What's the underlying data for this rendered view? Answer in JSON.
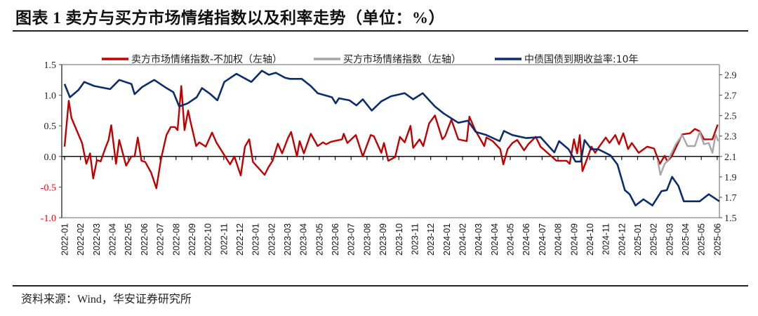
{
  "title": "图表 1 卖方与买方市场情绪指数以及利率走势（单位：%）",
  "source": "资料来源：Wind，华安证券研究所",
  "chart_data": {
    "type": "line",
    "title": "",
    "legend_position": "top",
    "grid": false,
    "left_axis": {
      "range": [
        -1.0,
        1.5
      ],
      "ticks": [
        "1.5",
        "1.0",
        "0.5",
        "0.0",
        "-0.5",
        "-1.0"
      ],
      "negative_label_color": "#ff0000"
    },
    "right_axis": {
      "range": [
        1.5,
        3.0
      ],
      "ticks": [
        "2.9",
        "2.7",
        "2.5",
        "2.3",
        "2.1",
        "1.9",
        "1.7",
        "1.5"
      ]
    },
    "x_ticks": [
      "2022-01",
      "2022-02",
      "2022-03",
      "2022-04",
      "2022-05",
      "2022-06",
      "2022-07",
      "2022-08",
      "2022-09",
      "2022-10",
      "2022-11",
      "2022-12",
      "2023-01",
      "2023-02",
      "2023-03",
      "2023-04",
      "2023-05",
      "2023-06",
      "2023-07",
      "2023-08",
      "2023-09",
      "2023-10",
      "2023-11",
      "2023-12",
      "2024-01",
      "2024-02",
      "2024-03",
      "2024-04",
      "2024-05",
      "2024-06",
      "2024-07",
      "2024-08",
      "2024-09",
      "2024-10",
      "2024-11",
      "2024-12",
      "2025-01",
      "2025-02",
      "2025-03",
      "2025-04",
      "2025-05",
      "2025-06"
    ],
    "series": [
      {
        "name": "卖方市场情绪指数-不加权（左轴）",
        "axis": "left",
        "color": "#c00000",
        "points": [
          [
            "2022-01-01",
            0.16
          ],
          [
            "2022-01-09",
            0.91
          ],
          [
            "2022-01-14",
            0.63
          ],
          [
            "2022-02-04",
            0.22
          ],
          [
            "2022-02-12",
            -0.12
          ],
          [
            "2022-02-19",
            0.05
          ],
          [
            "2022-02-25",
            -0.36
          ],
          [
            "2022-03-02",
            -0.06
          ],
          [
            "2022-03-09",
            -0.08
          ],
          [
            "2022-03-18",
            0.14
          ],
          [
            "2022-03-24",
            0.27
          ],
          [
            "2022-03-29",
            0.51
          ],
          [
            "2022-04-08",
            -0.12
          ],
          [
            "2022-04-14",
            0.27
          ],
          [
            "2022-04-27",
            -0.15
          ],
          [
            "2022-05-07",
            0.0
          ],
          [
            "2022-05-13",
            0.0
          ],
          [
            "2022-05-19",
            0.31
          ],
          [
            "2022-05-26",
            -0.07
          ],
          [
            "2022-06-03",
            -0.09
          ],
          [
            "2022-06-14",
            -0.26
          ],
          [
            "2022-06-24",
            -0.52
          ],
          [
            "2022-07-03",
            -0.03
          ],
          [
            "2022-07-13",
            0.35
          ],
          [
            "2022-07-21",
            0.48
          ],
          [
            "2022-07-29",
            0.48
          ],
          [
            "2022-08-04",
            0.43
          ],
          [
            "2022-08-11",
            1.15
          ],
          [
            "2022-08-17",
            0.43
          ],
          [
            "2022-08-24",
            0.75
          ],
          [
            "2022-08-28",
            0.58
          ],
          [
            "2022-09-09",
            0.17
          ],
          [
            "2022-09-15",
            0.23
          ],
          [
            "2022-09-27",
            0.16
          ],
          [
            "2022-10-09",
            0.39
          ],
          [
            "2022-10-17",
            0.23
          ],
          [
            "2022-11-13",
            -0.13
          ],
          [
            "2022-11-21",
            0.0
          ],
          [
            "2022-12-03",
            -0.31
          ],
          [
            "2022-12-11",
            0.16
          ],
          [
            "2022-12-19",
            0.28
          ],
          [
            "2022-12-26",
            -0.09
          ],
          [
            "2023-01-18",
            -0.3
          ],
          [
            "2023-01-25",
            -0.18
          ],
          [
            "2023-02-03",
            -0.07
          ],
          [
            "2023-02-13",
            0.21
          ],
          [
            "2023-02-21",
            0.05
          ],
          [
            "2023-03-02",
            0.3
          ],
          [
            "2023-03-08",
            0.4
          ],
          [
            "2023-03-19",
            0.0
          ],
          [
            "2023-03-24",
            0.25
          ],
          [
            "2023-04-02",
            0.05
          ],
          [
            "2023-04-15",
            0.37
          ],
          [
            "2023-04-28",
            0.17
          ],
          [
            "2023-05-08",
            0.23
          ],
          [
            "2023-05-14",
            0.2
          ],
          [
            "2023-05-23",
            0.24
          ],
          [
            "2023-06-14",
            0.28
          ],
          [
            "2023-06-17",
            0.37
          ],
          [
            "2023-06-24",
            0.22
          ],
          [
            "2023-07-10",
            0.35
          ],
          [
            "2023-07-23",
            0.0
          ],
          [
            "2023-08-08",
            0.35
          ],
          [
            "2023-08-14",
            0.33
          ],
          [
            "2023-08-28",
            0.06
          ],
          [
            "2023-09-03",
            0.22
          ],
          [
            "2023-09-11",
            -0.07
          ],
          [
            "2023-09-24",
            -0.01
          ],
          [
            "2023-10-03",
            0.32
          ],
          [
            "2023-10-12",
            0.23
          ],
          [
            "2023-10-23",
            0.5
          ],
          [
            "2023-10-28",
            0.14
          ],
          [
            "2023-11-10",
            0.28
          ],
          [
            "2023-11-17",
            0.17
          ],
          [
            "2023-11-28",
            0.54
          ],
          [
            "2023-12-09",
            0.67
          ],
          [
            "2023-12-23",
            0.28
          ],
          [
            "2023-12-28",
            0.33
          ],
          [
            "2024-01-10",
            0.6
          ],
          [
            "2024-01-23",
            0.28
          ],
          [
            "2024-02-09",
            0.25
          ],
          [
            "2024-02-14",
            0.65
          ],
          [
            "2024-02-25",
            0.43
          ],
          [
            "2024-03-12",
            0.17
          ],
          [
            "2024-03-16",
            0.31
          ],
          [
            "2024-03-28",
            0.25
          ],
          [
            "2024-04-12",
            0.12
          ],
          [
            "2024-04-18",
            -0.13
          ],
          [
            "2024-04-26",
            0.12
          ],
          [
            "2024-05-05",
            0.22
          ],
          [
            "2024-05-14",
            0.27
          ],
          [
            "2024-05-27",
            0.1
          ],
          [
            "2024-06-05",
            0.2
          ],
          [
            "2024-06-19",
            0.32
          ],
          [
            "2024-06-28",
            0.16
          ],
          [
            "2024-07-11",
            0.06
          ],
          [
            "2024-07-28",
            -0.07
          ],
          [
            "2024-08-17",
            -0.07
          ],
          [
            "2024-08-23",
            -0.12
          ],
          [
            "2024-09-01",
            0.28
          ],
          [
            "2024-09-07",
            0.05
          ],
          [
            "2024-09-12",
            0.35
          ],
          [
            "2024-09-17",
            -0.24
          ],
          [
            "2024-09-26",
            -0.03
          ],
          [
            "2024-10-04",
            0.16
          ],
          [
            "2024-10-11",
            0.06
          ],
          [
            "2024-10-17",
            0.14
          ],
          [
            "2024-11-01",
            0.31
          ],
          [
            "2024-11-08",
            0.22
          ],
          [
            "2024-11-19",
            0.35
          ],
          [
            "2024-11-26",
            0.2
          ],
          [
            "2024-12-04",
            0.38
          ],
          [
            "2024-12-13",
            0.12
          ],
          [
            "2024-12-20",
            0.22
          ],
          [
            "2025-01-03",
            0.06
          ],
          [
            "2025-01-19",
            0.16
          ],
          [
            "2025-02-02",
            0.13
          ],
          [
            "2025-02-13",
            -0.12
          ],
          [
            "2025-02-22",
            0.01
          ],
          [
            "2025-02-27",
            -0.08
          ],
          [
            "2025-03-05",
            0.0
          ],
          [
            "2025-03-25",
            0.36
          ],
          [
            "2025-04-10",
            0.38
          ],
          [
            "2025-04-19",
            0.45
          ],
          [
            "2025-04-28",
            0.41
          ],
          [
            "2025-05-06",
            0.28
          ],
          [
            "2025-05-22",
            0.28
          ],
          [
            "2025-06-02",
            0.52
          ]
        ]
      },
      {
        "name": "买方市场情绪指数（左轴）",
        "axis": "left",
        "color": "#a6a6a6",
        "points": [
          [
            "2025-02-09",
            -0.07
          ],
          [
            "2025-02-14",
            -0.3
          ],
          [
            "2025-02-22",
            -0.12
          ],
          [
            "2025-02-28",
            -0.07
          ],
          [
            "2025-03-13",
            0.2
          ],
          [
            "2025-03-25",
            0.35
          ],
          [
            "2025-04-05",
            0.17
          ],
          [
            "2025-04-19",
            0.17
          ],
          [
            "2025-04-28",
            0.4
          ],
          [
            "2025-05-06",
            0.2
          ],
          [
            "2025-05-15",
            0.22
          ],
          [
            "2025-05-22",
            0.06
          ],
          [
            "2025-05-28",
            0.36
          ],
          [
            "2025-06-03",
            0.25
          ]
        ]
      },
      {
        "name": "中债国债到期收益率:10年",
        "axis": "right",
        "color": "#0c2d6b",
        "points": [
          [
            "2022-01-01",
            2.81
          ],
          [
            "2022-01-11",
            2.68
          ],
          [
            "2022-01-27",
            2.75
          ],
          [
            "2022-02-08",
            2.83
          ],
          [
            "2022-02-27",
            2.79
          ],
          [
            "2022-03-27",
            2.76
          ],
          [
            "2022-04-14",
            2.85
          ],
          [
            "2022-05-07",
            2.81
          ],
          [
            "2022-05-13",
            2.71
          ],
          [
            "2022-05-27",
            2.78
          ],
          [
            "2022-06-20",
            2.85
          ],
          [
            "2022-07-13",
            2.77
          ],
          [
            "2022-07-26",
            2.73
          ],
          [
            "2022-08-07",
            2.59
          ],
          [
            "2022-08-23",
            2.62
          ],
          [
            "2022-09-10",
            2.68
          ],
          [
            "2022-09-20",
            2.77
          ],
          [
            "2022-10-06",
            2.71
          ],
          [
            "2022-10-19",
            2.65
          ],
          [
            "2022-11-02",
            2.83
          ],
          [
            "2022-11-25",
            2.91
          ],
          [
            "2022-12-23",
            2.83
          ],
          [
            "2023-01-13",
            2.94
          ],
          [
            "2023-01-26",
            2.9
          ],
          [
            "2023-02-09",
            2.92
          ],
          [
            "2023-02-27",
            2.87
          ],
          [
            "2023-03-06",
            2.86
          ],
          [
            "2023-03-28",
            2.86
          ],
          [
            "2023-04-15",
            2.79
          ],
          [
            "2023-04-28",
            2.72
          ],
          [
            "2023-05-25",
            2.68
          ],
          [
            "2023-06-02",
            2.62
          ],
          [
            "2023-06-08",
            2.67
          ],
          [
            "2023-06-28",
            2.65
          ],
          [
            "2023-07-11",
            2.6
          ],
          [
            "2023-07-23",
            2.66
          ],
          [
            "2023-08-10",
            2.55
          ],
          [
            "2023-08-28",
            2.64
          ],
          [
            "2023-09-16",
            2.69
          ],
          [
            "2023-10-12",
            2.72
          ],
          [
            "2023-10-28",
            2.66
          ],
          [
            "2023-11-16",
            2.72
          ],
          [
            "2023-12-09",
            2.59
          ],
          [
            "2023-12-26",
            2.52
          ],
          [
            "2024-01-23",
            2.43
          ],
          [
            "2024-02-11",
            2.45
          ],
          [
            "2024-02-26",
            2.34
          ],
          [
            "2024-03-16",
            2.31
          ],
          [
            "2024-04-11",
            2.25
          ],
          [
            "2024-04-19",
            2.35
          ],
          [
            "2024-05-05",
            2.31
          ],
          [
            "2024-06-01",
            2.28
          ],
          [
            "2024-06-28",
            2.29
          ],
          [
            "2024-07-24",
            2.14
          ],
          [
            "2024-08-03",
            2.25
          ],
          [
            "2024-08-21",
            2.17
          ],
          [
            "2024-09-04",
            2.05
          ],
          [
            "2024-09-14",
            2.05
          ],
          [
            "2024-09-21",
            2.26
          ],
          [
            "2024-10-04",
            2.17
          ],
          [
            "2024-10-17",
            2.17
          ],
          [
            "2024-11-10",
            2.11
          ],
          [
            "2024-11-23",
            2.02
          ],
          [
            "2024-12-07",
            1.77
          ],
          [
            "2024-12-16",
            1.73
          ],
          [
            "2024-12-27",
            1.62
          ],
          [
            "2025-01-12",
            1.68
          ],
          [
            "2025-01-29",
            1.62
          ],
          [
            "2025-02-16",
            1.76
          ],
          [
            "2025-02-26",
            1.77
          ],
          [
            "2025-03-06",
            1.9
          ],
          [
            "2025-03-18",
            1.81
          ],
          [
            "2025-03-28",
            1.66
          ],
          [
            "2025-04-15",
            1.66
          ],
          [
            "2025-04-28",
            1.66
          ],
          [
            "2025-05-15",
            1.73
          ],
          [
            "2025-06-05",
            1.66
          ]
        ]
      }
    ]
  }
}
